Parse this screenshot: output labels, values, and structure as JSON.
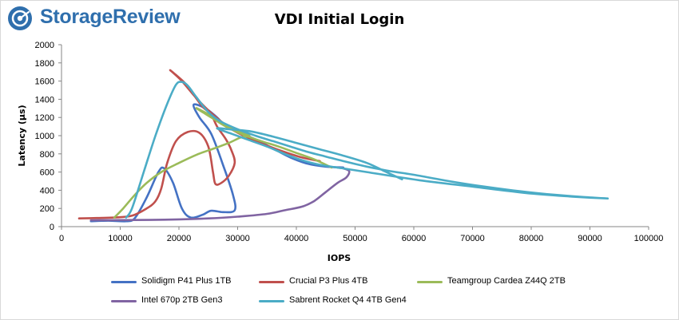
{
  "branding": {
    "logo_text": "StorageReview"
  },
  "chart_data": {
    "type": "line",
    "title": "VDI Initial Login",
    "xlabel": "IOPS",
    "ylabel": "Latency (µs)",
    "xlim": [
      0,
      100000
    ],
    "ylim": [
      0,
      2000
    ],
    "xticks": [
      0,
      10000,
      20000,
      30000,
      40000,
      50000,
      60000,
      70000,
      80000,
      90000,
      100000
    ],
    "yticks": [
      0,
      200,
      400,
      600,
      800,
      1000,
      1200,
      1400,
      1600,
      1800,
      2000
    ],
    "grid": "none",
    "legend_position": "bottom",
    "series": [
      {
        "name": "Solidigm P41 Plus 1TB",
        "color": "#4472c4",
        "points": [
          [
            5000,
            60
          ],
          [
            8000,
            65
          ],
          [
            11000,
            60
          ],
          [
            12500,
            95
          ],
          [
            14500,
            320
          ],
          [
            16500,
            600
          ],
          [
            17500,
            640
          ],
          [
            19000,
            480
          ],
          [
            20500,
            200
          ],
          [
            22000,
            100
          ],
          [
            24000,
            130
          ],
          [
            25500,
            175
          ],
          [
            27500,
            160
          ],
          [
            29500,
            180
          ],
          [
            29200,
            350
          ],
          [
            27500,
            680
          ],
          [
            25500,
            1020
          ],
          [
            23500,
            1200
          ],
          [
            22500,
            1340
          ],
          [
            24500,
            1300
          ],
          [
            26500,
            1200
          ],
          [
            28000,
            1100
          ],
          [
            30000,
            1040
          ],
          [
            33000,
            960
          ],
          [
            36000,
            860
          ],
          [
            39000,
            760
          ],
          [
            42000,
            690
          ],
          [
            45000,
            660
          ],
          [
            48000,
            650
          ]
        ]
      },
      {
        "name": "Crucial P3 Plus 4TB",
        "color": "#c0504d",
        "points": [
          [
            3000,
            90
          ],
          [
            6000,
            95
          ],
          [
            9000,
            100
          ],
          [
            12000,
            120
          ],
          [
            14500,
            200
          ],
          [
            16000,
            280
          ],
          [
            17000,
            420
          ],
          [
            18000,
            700
          ],
          [
            19500,
            940
          ],
          [
            21500,
            1040
          ],
          [
            23500,
            1030
          ],
          [
            25000,
            880
          ],
          [
            25800,
            600
          ],
          [
            26200,
            470
          ],
          [
            27200,
            480
          ],
          [
            28500,
            560
          ],
          [
            29500,
            700
          ],
          [
            29000,
            830
          ],
          [
            28000,
            960
          ],
          [
            26500,
            1100
          ],
          [
            25500,
            1230
          ],
          [
            24000,
            1320
          ],
          [
            22500,
            1450
          ],
          [
            21000,
            1580
          ],
          [
            18500,
            1720
          ],
          [
            20500,
            1600
          ],
          [
            23000,
            1410
          ],
          [
            26000,
            1220
          ],
          [
            29000,
            1070
          ],
          [
            32000,
            970
          ],
          [
            35000,
            890
          ],
          [
            38000,
            820
          ],
          [
            41000,
            760
          ],
          [
            44000,
            720
          ]
        ]
      },
      {
        "name": "Teamgroup Cardea Z44Q 2TB",
        "color": "#9bbb59",
        "points": [
          [
            9000,
            100
          ],
          [
            10500,
            200
          ],
          [
            12500,
            350
          ],
          [
            14500,
            480
          ],
          [
            17000,
            600
          ],
          [
            20000,
            700
          ],
          [
            23000,
            790
          ],
          [
            26000,
            860
          ],
          [
            28500,
            920
          ],
          [
            30500,
            980
          ],
          [
            32000,
            1000
          ],
          [
            30000,
            1060
          ],
          [
            28000,
            1120
          ],
          [
            26000,
            1200
          ],
          [
            24000,
            1270
          ],
          [
            23000,
            1300
          ],
          [
            25500,
            1200
          ],
          [
            28000,
            1100
          ],
          [
            31000,
            1010
          ],
          [
            34000,
            940
          ],
          [
            37000,
            880
          ],
          [
            40000,
            810
          ],
          [
            43000,
            740
          ],
          [
            46000,
            650
          ]
        ]
      },
      {
        "name": "Intel 670p 2TB Gen3",
        "color": "#8064a2",
        "points": [
          [
            5000,
            70
          ],
          [
            10000,
            72
          ],
          [
            15000,
            74
          ],
          [
            20000,
            80
          ],
          [
            25000,
            90
          ],
          [
            30000,
            110
          ],
          [
            35000,
            140
          ],
          [
            38000,
            180
          ],
          [
            41000,
            220
          ],
          [
            43000,
            280
          ],
          [
            45000,
            380
          ],
          [
            47000,
            480
          ],
          [
            48500,
            540
          ],
          [
            49000,
            610
          ],
          [
            48000,
            640
          ],
          [
            47000,
            650
          ]
        ]
      },
      {
        "name": "Sabrent Rocket Q4 4TB Gen4",
        "color": "#4bacc6",
        "points": [
          [
            11000,
            100
          ],
          [
            12000,
            200
          ],
          [
            14000,
            600
          ],
          [
            16000,
            1000
          ],
          [
            18000,
            1350
          ],
          [
            19500,
            1560
          ],
          [
            20500,
            1590
          ],
          [
            21500,
            1550
          ],
          [
            23000,
            1420
          ],
          [
            25000,
            1260
          ],
          [
            27000,
            1160
          ],
          [
            30000,
            1070
          ],
          [
            33000,
            1000
          ],
          [
            36000,
            940
          ],
          [
            39000,
            880
          ],
          [
            42000,
            820
          ],
          [
            45000,
            770
          ],
          [
            48000,
            720
          ],
          [
            52000,
            660
          ],
          [
            56000,
            610
          ],
          [
            60000,
            570
          ],
          [
            66000,
            500
          ],
          [
            72000,
            440
          ],
          [
            78000,
            390
          ],
          [
            84000,
            350
          ],
          [
            89000,
            325
          ],
          [
            93000,
            310
          ],
          [
            87000,
            330
          ],
          [
            79000,
            370
          ],
          [
            70000,
            440
          ],
          [
            61000,
            510
          ],
          [
            52000,
            600
          ],
          [
            48000,
            640
          ],
          [
            44000,
            680
          ],
          [
            41000,
            730
          ],
          [
            38000,
            800
          ],
          [
            35000,
            880
          ],
          [
            32000,
            950
          ],
          [
            29000,
            1020
          ],
          [
            26500,
            1080
          ],
          [
            28500,
            1070
          ],
          [
            32000,
            1050
          ],
          [
            36000,
            990
          ],
          [
            40000,
            920
          ],
          [
            44000,
            850
          ],
          [
            48000,
            780
          ],
          [
            52000,
            700
          ],
          [
            55000,
            610
          ],
          [
            58000,
            520
          ]
        ]
      }
    ]
  }
}
